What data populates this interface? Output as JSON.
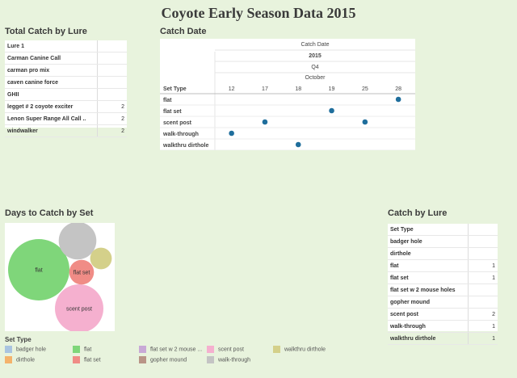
{
  "dashboard_title": "Coyote Early Season Data 2015",
  "total_catch": {
    "title": "Total Catch by Lure",
    "header": "Lure 1",
    "rows": [
      {
        "label": "Carman Canine Call",
        "value": ""
      },
      {
        "label": "carman pro mix",
        "value": ""
      },
      {
        "label": "caven canine force",
        "value": ""
      },
      {
        "label": "GHII",
        "value": ""
      },
      {
        "label": "legget # 2 coyote exciter",
        "value": "2"
      },
      {
        "label": "Lenon Super Range All Call ..",
        "value": "2"
      },
      {
        "label": "windwalker",
        "value": "2"
      }
    ]
  },
  "catch_date": {
    "title": "Catch Date",
    "header_lines": [
      "Catch Date",
      "2015",
      "Q4",
      "October"
    ],
    "row_header": "Set Type",
    "color": "#1f6e9c"
  },
  "days_to_catch": {
    "title": "Days to Catch by Set"
  },
  "catch_by_lure": {
    "title": "Catch by Lure",
    "header": "Set Type",
    "rows": [
      {
        "label": "badger hole",
        "value": ""
      },
      {
        "label": "dirthole",
        "value": ""
      },
      {
        "label": "flat",
        "value": "1"
      },
      {
        "label": "flat set",
        "value": "1"
      },
      {
        "label": "flat set w 2 mouse holes",
        "value": ""
      },
      {
        "label": "gopher mound",
        "value": ""
      },
      {
        "label": "scent post",
        "value": "2"
      },
      {
        "label": "walk-through",
        "value": "1"
      },
      {
        "label": "walkthru dirthole",
        "value": "1"
      }
    ]
  },
  "legend": {
    "title": "Set Type",
    "items": [
      {
        "label": "badger hole",
        "color": "#a9c4e0"
      },
      {
        "label": "flat",
        "color": "#7fd67a"
      },
      {
        "label": "flat set w 2 mouse ...",
        "color": "#c8a9d6"
      },
      {
        "label": "scent post",
        "color": "#f5b0cf"
      },
      {
        "label": "walkthru dirthole",
        "color": "#d4d08a"
      },
      {
        "label": "dirthole",
        "color": "#f4b36c"
      },
      {
        "label": "flat set",
        "color": "#f08c86"
      },
      {
        "label": "gopher mound",
        "color": "#b99587"
      },
      {
        "label": "walk-through",
        "color": "#c4c4c4"
      }
    ]
  },
  "chart_data": [
    {
      "type": "scatter",
      "title": "Catch Date",
      "x_label": "October",
      "x_ticks": [
        12,
        17,
        18,
        19,
        25,
        28
      ],
      "categories": [
        "flat",
        "flat set",
        "scent post",
        "walk-through",
        "walkthru dirthole"
      ],
      "points": [
        {
          "category": "flat",
          "x": 28
        },
        {
          "category": "flat set",
          "x": 19
        },
        {
          "category": "scent post",
          "x": 17
        },
        {
          "category": "scent post",
          "x": 25
        },
        {
          "category": "walk-through",
          "x": 12
        },
        {
          "category": "walkthru dirthole",
          "x": 18
        }
      ]
    },
    {
      "type": "bubble",
      "title": "Days to Catch by Set",
      "bubbles": [
        {
          "label": "flat",
          "value": 16,
          "color": "#7fd67a",
          "show_label": true
        },
        {
          "label": "scent post",
          "value": 10,
          "color": "#f5b0cf",
          "show_label": true
        },
        {
          "label": "walk-through",
          "value": 6,
          "color": "#c4c4c4",
          "show_label": false
        },
        {
          "label": "flat set",
          "value": 2.6,
          "color": "#f08c86",
          "show_label": true
        },
        {
          "label": "walkthru dirthole",
          "value": 2,
          "color": "#d4d08a",
          "show_label": false
        }
      ]
    }
  ]
}
